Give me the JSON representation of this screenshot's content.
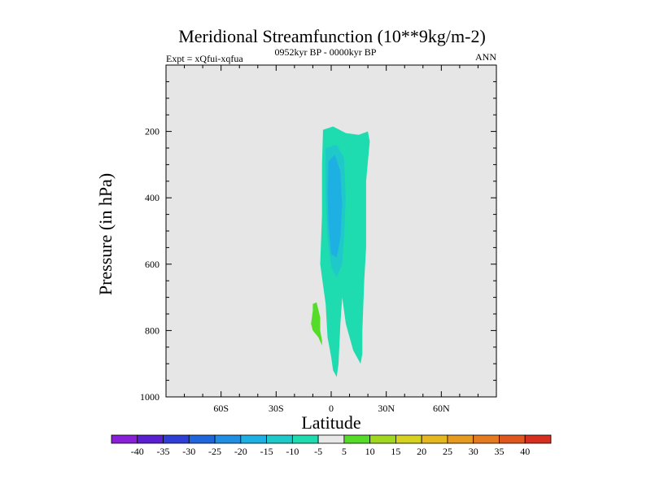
{
  "chart_data": {
    "type": "heatmap",
    "title": "Meridional Streamfunction (10**9kg/m-2)",
    "subtitle_left": "Expt = xQfui-xqfua",
    "subtitle_center": "0952kyr BP - 0000kyr BP",
    "subtitle_right": "ANN",
    "xlabel": "Latitude",
    "ylabel": "Pressure (in hPa)",
    "xlim": [
      -90,
      90
    ],
    "ylim": [
      1000,
      0
    ],
    "x_ticks": [
      {
        "value": -60,
        "label": "60S"
      },
      {
        "value": -30,
        "label": "30S"
      },
      {
        "value": 0,
        "label": "0"
      },
      {
        "value": 30,
        "label": "30N"
      },
      {
        "value": 60,
        "label": "60N"
      }
    ],
    "y_ticks": [
      {
        "value": 200,
        "label": "200"
      },
      {
        "value": 400,
        "label": "400"
      },
      {
        "value": 600,
        "label": "600"
      },
      {
        "value": 800,
        "label": "800"
      },
      {
        "value": 1000,
        "label": "1000"
      }
    ],
    "colorbar": {
      "labels": [
        "-40",
        "-35",
        "-30",
        "-25",
        "-20",
        "-15",
        "-10",
        "-5",
        "5",
        "10",
        "15",
        "20",
        "25",
        "30",
        "35",
        "40"
      ],
      "colors": [
        "#8a1fd8",
        "#5a1fd0",
        "#2f3fd6",
        "#1f66dd",
        "#1f8ee3",
        "#1fb0e3",
        "#1fc9c9",
        "#1fdcb0",
        "#e8e8e8",
        "#55dc28",
        "#a0d81f",
        "#d6d21f",
        "#e6b81f",
        "#e69a1f",
        "#e67a1f",
        "#e0561f",
        "#d62f1f"
      ]
    },
    "contour_regions": [
      {
        "name": "negative-5-to-10-region",
        "level_range": [
          -10,
          -5
        ],
        "color": "#1fdcb0",
        "polygon": [
          [
            -4.5,
            195
          ],
          [
            1,
            185
          ],
          [
            8,
            205
          ],
          [
            15,
            210
          ],
          [
            20,
            200
          ],
          [
            21,
            230
          ],
          [
            19,
            350
          ],
          [
            19,
            550
          ],
          [
            18,
            650
          ],
          [
            17,
            800
          ],
          [
            17,
            870
          ],
          [
            16,
            900
          ],
          [
            12,
            860
          ],
          [
            8,
            780
          ],
          [
            6,
            700
          ],
          [
            5,
            780
          ],
          [
            4,
            900
          ],
          [
            3,
            940
          ],
          [
            1,
            920
          ],
          [
            0,
            880
          ],
          [
            -2,
            820
          ],
          [
            -3,
            720
          ],
          [
            -5,
            640
          ],
          [
            -6,
            600
          ],
          [
            -5,
            450
          ],
          [
            -5,
            300
          ],
          [
            -4.5,
            200
          ]
        ]
      },
      {
        "name": "negative-10-to-15-region",
        "level_range": [
          -15,
          -10
        ],
        "color": "#1fc9c9",
        "polygon": [
          [
            -3,
            250
          ],
          [
            3,
            240
          ],
          [
            7,
            280
          ],
          [
            8,
            400
          ],
          [
            7,
            520
          ],
          [
            6,
            600
          ],
          [
            3,
            640
          ],
          [
            0,
            610
          ],
          [
            -2,
            520
          ],
          [
            -3,
            400
          ],
          [
            -3,
            300
          ]
        ]
      },
      {
        "name": "negative-15-to-20-region",
        "level_range": [
          -20,
          -15
        ],
        "color": "#1fb0e3",
        "polygon": [
          [
            -1.5,
            290
          ],
          [
            2,
            270
          ],
          [
            5,
            320
          ],
          [
            6,
            420
          ],
          [
            5,
            520
          ],
          [
            3,
            580
          ],
          [
            0,
            570
          ],
          [
            -1.5,
            480
          ],
          [
            -2,
            380
          ]
        ]
      },
      {
        "name": "positive-5-to-10-region",
        "level_range": [
          5,
          10
        ],
        "color": "#55dc28",
        "polygon": [
          [
            -10,
            720
          ],
          [
            -8,
            715
          ],
          [
            -6,
            760
          ],
          [
            -6,
            800
          ],
          [
            -5,
            830
          ],
          [
            -5,
            845
          ],
          [
            -7,
            820
          ],
          [
            -10,
            800
          ],
          [
            -11,
            780
          ],
          [
            -10,
            740
          ]
        ]
      }
    ]
  }
}
